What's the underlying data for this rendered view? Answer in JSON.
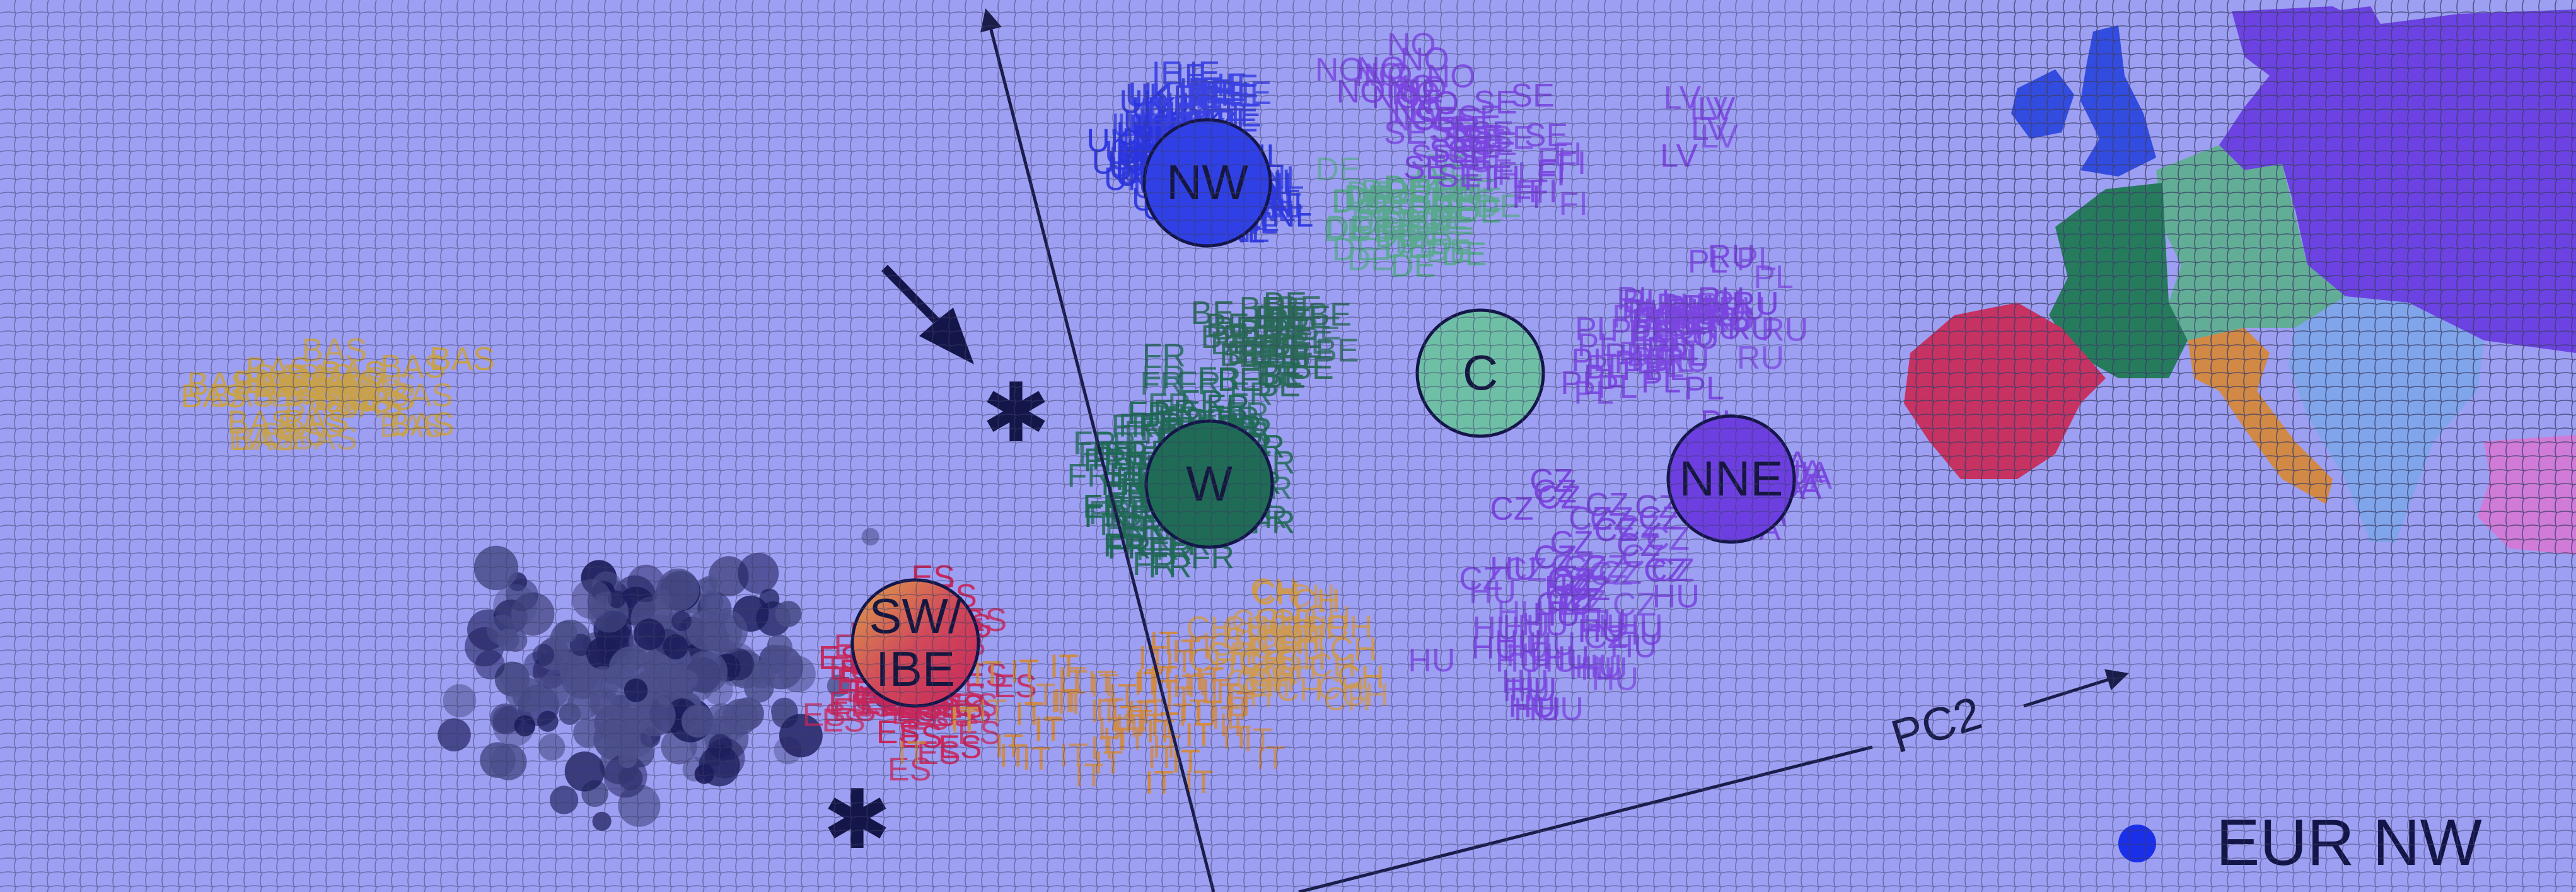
{
  "chart_data": {
    "type": "scatter",
    "title": "",
    "axes": [
      {
        "label": "",
        "direction": "up"
      },
      {
        "label": "PC2",
        "direction": "right"
      }
    ],
    "legend": [
      {
        "name": "EUR NW",
        "color": "#1a2fe8"
      }
    ],
    "legend_position": "bottom-right",
    "clusters": [
      {
        "label": "NW",
        "color": "#2f40e6"
      },
      {
        "label": "C",
        "color": "#6fbfa6"
      },
      {
        "label": "W",
        "color": "#1f6b55"
      },
      {
        "label": "NNE",
        "color": "#6d3fe0"
      },
      {
        "label": "SW/\nIBE",
        "color": "gradient"
      }
    ],
    "population_groups": [
      {
        "code": "UK",
        "color": "#2b35df"
      },
      {
        "code": "IE",
        "color": "#3a42e4"
      },
      {
        "code": "NL",
        "color": "#2f3be2"
      },
      {
        "code": "DE",
        "color": "#59a98f"
      },
      {
        "code": "BE",
        "color": "#2a6a57"
      },
      {
        "code": "FR",
        "color": "#1f6b55"
      },
      {
        "code": "CH",
        "color": "#cf9a52"
      },
      {
        "code": "NO",
        "color": "#7a45e0"
      },
      {
        "code": "SE",
        "color": "#7a45e0"
      },
      {
        "code": "FI",
        "color": "#7a45e0"
      },
      {
        "code": "LV",
        "color": "#7a45e0"
      },
      {
        "code": "PL",
        "color": "#7a45e0"
      },
      {
        "code": "RU",
        "color": "#7a45e0"
      },
      {
        "code": "UA",
        "color": "#7a45e0"
      },
      {
        "code": "CZ",
        "color": "#7a45e0"
      },
      {
        "code": "HU",
        "color": "#7a45e0"
      },
      {
        "code": "ES",
        "color": "#c9265a"
      },
      {
        "code": "BAS",
        "color": "#c9a24a"
      },
      {
        "code": "IT",
        "color": "#d28b42"
      }
    ],
    "map_regions": [
      {
        "region": "british-isles",
        "color": "#2d48e0"
      },
      {
        "region": "france",
        "color": "#1f7a55"
      },
      {
        "region": "iberia",
        "color": "#c92d5a"
      },
      {
        "region": "central-europe",
        "color": "#5fae92"
      },
      {
        "region": "italy",
        "color": "#d4883c"
      },
      {
        "region": "northeast",
        "color": "#6a3fe2"
      },
      {
        "region": "balkans",
        "color": "#7fa6ea"
      },
      {
        "region": "anatolia",
        "color": "#d37ad6"
      }
    ],
    "grid": false
  }
}
